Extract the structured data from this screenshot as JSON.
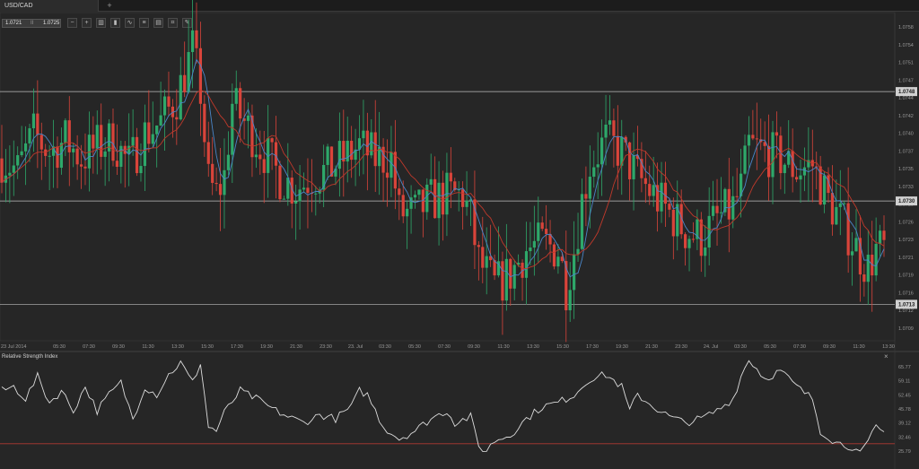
{
  "tab": {
    "label": "USD/CAD",
    "add_label": "+"
  },
  "quote": {
    "bid": "1.0721",
    "separator": "II",
    "ask": "1.0725"
  },
  "toolbar": [
    {
      "name": "zoom-out-icon",
      "glyph": "−"
    },
    {
      "name": "zoom-in-icon",
      "glyph": "+"
    },
    {
      "name": "bar-chart-icon",
      "glyph": "▥"
    },
    {
      "name": "candles-icon",
      "glyph": "▮"
    },
    {
      "name": "line-chart-icon",
      "glyph": "∿"
    },
    {
      "name": "indicators-icon",
      "glyph": "≡"
    },
    {
      "name": "template-icon",
      "glyph": "▤"
    },
    {
      "name": "analysis-icon",
      "glyph": "⌗"
    },
    {
      "name": "draw-icon",
      "glyph": "✎"
    }
  ],
  "rsi_panel": {
    "title": "Relative Strength Index",
    "close_label": "×"
  },
  "colors": {
    "up": "#2ea86a",
    "down": "#d9443a",
    "ma_fast": "#4a86c8",
    "ma_slow": "#c0392b",
    "rsi": "#dcdcdc",
    "rsi_low_line": "#b03a32",
    "hline": "#bdbdbd"
  },
  "chart_data": [
    {
      "type": "candlestick",
      "symbol": "USD/CAD",
      "y_range": [
        1.0707,
        1.0761
      ],
      "y_ticks": [
        "1.0758",
        "1.0754",
        "1.0751",
        "1.0747",
        "1.0744",
        "1.0742",
        "1.0740",
        "1.0737",
        "1.0735",
        "1.0733",
        "1.0729",
        "1.0726",
        "1.0723",
        "1.0721",
        "1.0719",
        "1.0716",
        "1.0712",
        "1.0709"
      ],
      "x_ticks": [
        "23 Jul 2014",
        "05:30",
        "07:30",
        "09:30",
        "11:30",
        "13:30",
        "15:30",
        "17:30",
        "19:30",
        "21:30",
        "23:30",
        "23. Jul",
        "03:30",
        "05:30",
        "07:30",
        "09:30",
        "11:30",
        "13:30",
        "15:30",
        "17:30",
        "19:30",
        "21:30",
        "23:30",
        "24. Jul",
        "03:30",
        "05:30",
        "07:30",
        "09:30",
        "11:30",
        "13:30"
      ],
      "horizontal_lines": [
        {
          "value": 1.0748,
          "label": "1.0748"
        },
        {
          "value": 1.073,
          "label": "1.0730"
        },
        {
          "value": 1.0713,
          "label": "1.0713"
        }
      ],
      "anchors": [
        [
          0,
          1.0737
        ],
        [
          4,
          1.0735
        ],
        [
          8,
          1.0741
        ],
        [
          12,
          1.0738
        ],
        [
          16,
          1.074
        ],
        [
          20,
          1.0737
        ],
        [
          24,
          1.0739
        ],
        [
          28,
          1.074
        ],
        [
          32,
          1.0736
        ],
        [
          36,
          1.0741
        ],
        [
          40,
          1.0743
        ],
        [
          44,
          1.0747
        ],
        [
          48,
          1.0755
        ],
        [
          50,
          1.0748
        ],
        [
          52,
          1.0733
        ],
        [
          54,
          1.0731
        ],
        [
          56,
          1.0734
        ],
        [
          58,
          1.0746
        ],
        [
          62,
          1.0742
        ],
        [
          66,
          1.0738
        ],
        [
          70,
          1.0734
        ],
        [
          74,
          1.0732
        ],
        [
          78,
          1.0734
        ],
        [
          82,
          1.0735
        ],
        [
          86,
          1.0737
        ],
        [
          90,
          1.0739
        ],
        [
          94,
          1.0737
        ],
        [
          98,
          1.0737
        ],
        [
          100,
          1.0728
        ],
        [
          104,
          1.0728
        ],
        [
          108,
          1.073
        ],
        [
          112,
          1.0731
        ],
        [
          116,
          1.0731
        ],
        [
          118,
          1.0727
        ],
        [
          120,
          1.072
        ],
        [
          124,
          1.0716
        ],
        [
          128,
          1.0718
        ],
        [
          132,
          1.0722
        ],
        [
          136,
          1.0723
        ],
        [
          140,
          1.0722
        ],
        [
          142,
          1.0716
        ],
        [
          144,
          1.0722
        ],
        [
          146,
          1.073
        ],
        [
          148,
          1.0736
        ],
        [
          152,
          1.074
        ],
        [
          156,
          1.0738
        ],
        [
          160,
          1.0734
        ],
        [
          164,
          1.0731
        ],
        [
          168,
          1.0728
        ],
        [
          172,
          1.0725
        ],
        [
          176,
          1.0724
        ],
        [
          180,
          1.0727
        ],
        [
          184,
          1.0729
        ],
        [
          186,
          1.0732
        ],
        [
          188,
          1.0739
        ],
        [
          192,
          1.0738
        ],
        [
          196,
          1.0737
        ],
        [
          200,
          1.0735
        ],
        [
          204,
          1.0736
        ],
        [
          208,
          1.073
        ],
        [
          212,
          1.0726
        ],
        [
          216,
          1.0721
        ],
        [
          218,
          1.0719
        ],
        [
          220,
          1.0722
        ],
        [
          222,
          1.0722
        ]
      ]
    },
    {
      "type": "line",
      "name": "Relative Strength Index",
      "y_range": [
        20,
        72
      ],
      "y_ticks": [
        "65.77",
        "59.11",
        "52.45",
        "45.78",
        "39.12",
        "32.46",
        "25.79"
      ],
      "low_line": 29.5,
      "anchors": [
        [
          0,
          56
        ],
        [
          3,
          58
        ],
        [
          6,
          52
        ],
        [
          9,
          63
        ],
        [
          12,
          50
        ],
        [
          15,
          56
        ],
        [
          18,
          46
        ],
        [
          21,
          58
        ],
        [
          24,
          46
        ],
        [
          27,
          54
        ],
        [
          30,
          60
        ],
        [
          33,
          42
        ],
        [
          36,
          58
        ],
        [
          39,
          54
        ],
        [
          42,
          64
        ],
        [
          45,
          70
        ],
        [
          48,
          60
        ],
        [
          50,
          70
        ],
        [
          52,
          38
        ],
        [
          54,
          36
        ],
        [
          56,
          45
        ],
        [
          60,
          56
        ],
        [
          64,
          52
        ],
        [
          68,
          47
        ],
        [
          72,
          43
        ],
        [
          76,
          40
        ],
        [
          80,
          44
        ],
        [
          84,
          42
        ],
        [
          88,
          48
        ],
        [
          90,
          56
        ],
        [
          92,
          54
        ],
        [
          96,
          38
        ],
        [
          100,
          32
        ],
        [
          104,
          36
        ],
        [
          108,
          42
        ],
        [
          112,
          46
        ],
        [
          114,
          40
        ],
        [
          118,
          43
        ],
        [
          120,
          28
        ],
        [
          122,
          26
        ],
        [
          124,
          31
        ],
        [
          128,
          34
        ],
        [
          132,
          42
        ],
        [
          136,
          48
        ],
        [
          140,
          50
        ],
        [
          144,
          54
        ],
        [
          148,
          62
        ],
        [
          152,
          64
        ],
        [
          156,
          58
        ],
        [
          158,
          46
        ],
        [
          160,
          54
        ],
        [
          164,
          48
        ],
        [
          168,
          43
        ],
        [
          172,
          40
        ],
        [
          176,
          42
        ],
        [
          180,
          46
        ],
        [
          184,
          52
        ],
        [
          186,
          63
        ],
        [
          188,
          72
        ],
        [
          192,
          62
        ],
        [
          196,
          66
        ],
        [
          200,
          58
        ],
        [
          204,
          52
        ],
        [
          206,
          36
        ],
        [
          210,
          30
        ],
        [
          214,
          28
        ],
        [
          216,
          24
        ],
        [
          218,
          30
        ],
        [
          220,
          38
        ],
        [
          222,
          35
        ]
      ]
    }
  ]
}
